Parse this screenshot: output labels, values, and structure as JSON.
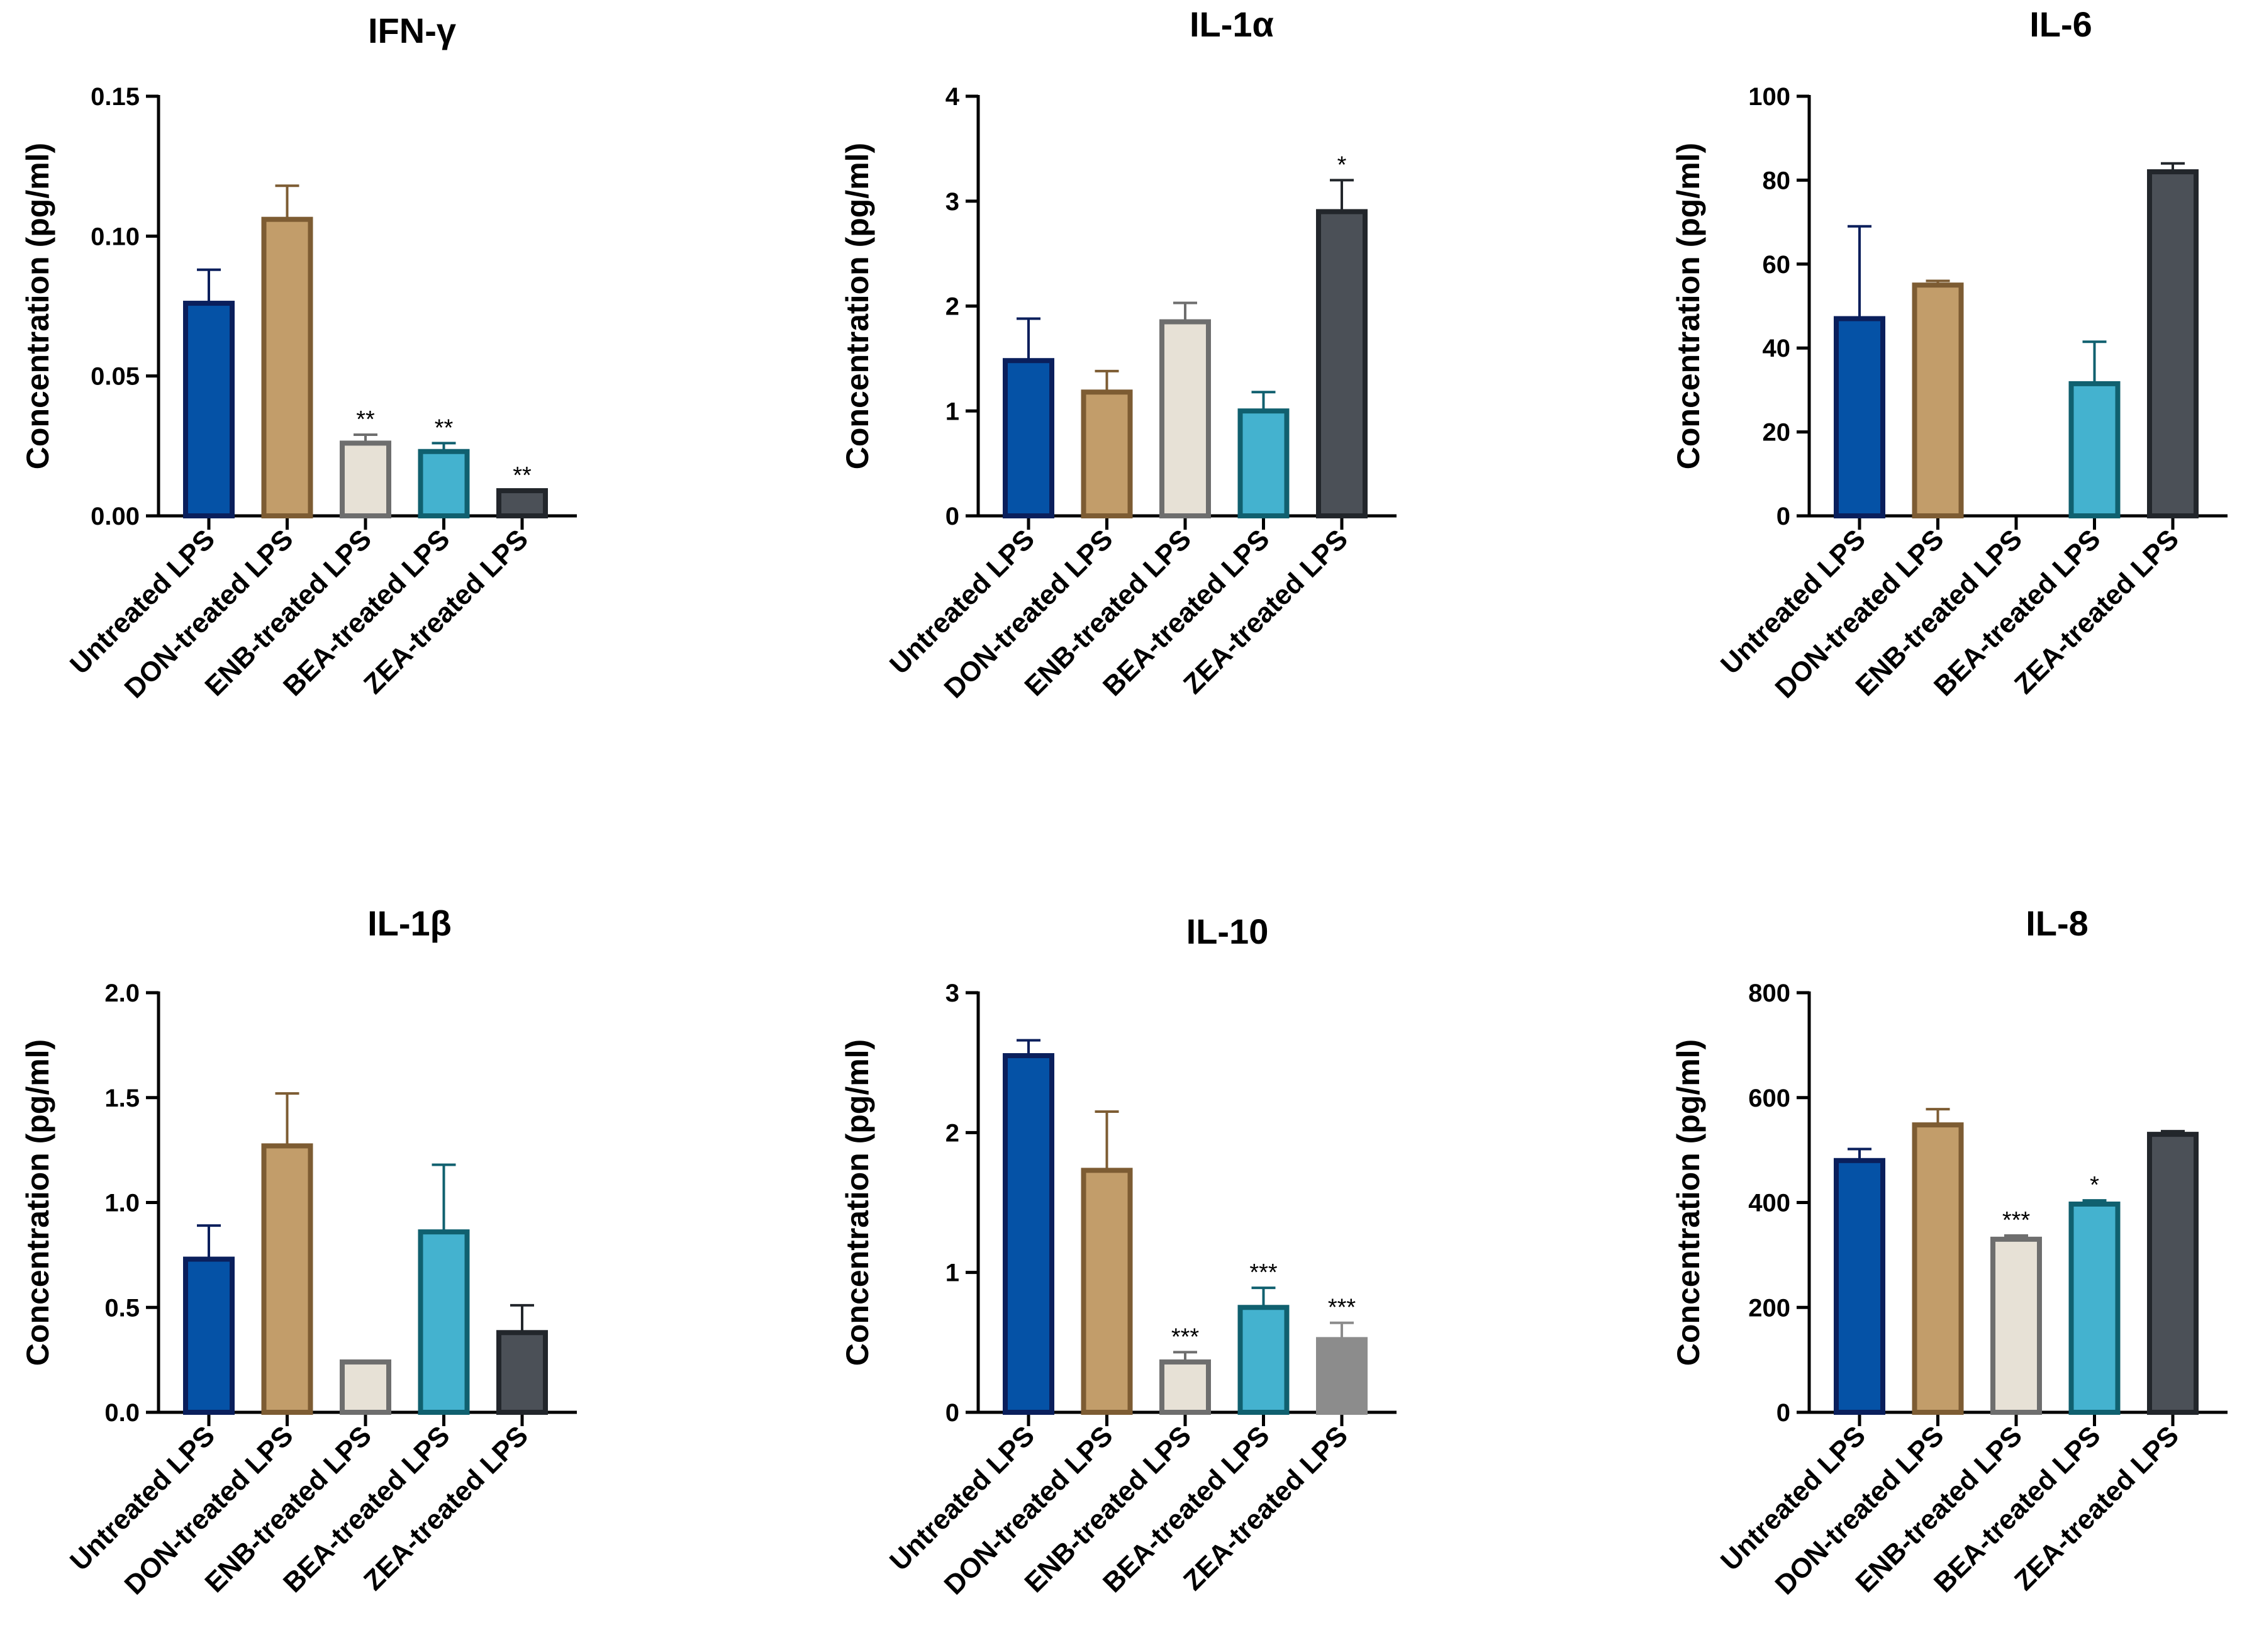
{
  "colors": {
    "untreated": {
      "fill": "#0552a6",
      "stroke": "#0a1f5c"
    },
    "don": {
      "fill": "#c29d6a",
      "stroke": "#7d5c33"
    },
    "enb": {
      "fill": "#e7e1d6",
      "stroke": "#6e6e6e"
    },
    "bea": {
      "fill": "#44b2cf",
      "stroke": "#10606f"
    },
    "zea": {
      "fill": "#4b5057",
      "stroke": "#22262b"
    },
    "zea_light": {
      "fill": "#8c8c8c",
      "stroke": "#8c8c8c"
    }
  },
  "chart_data": [
    {
      "type": "bar",
      "title": "IFN-γ",
      "ylabel": "Concentration (pg/ml)",
      "xlabel": "",
      "categories": [
        "Untreated LPS",
        "DON-treated LPS",
        "ENB-treated LPS",
        "BEA-treated LPS",
        "ZEA-treated LPS"
      ],
      "values": [
        0.076,
        0.106,
        0.026,
        0.023,
        0.009
      ],
      "errors": [
        0.012,
        0.012,
        0.003,
        0.003,
        0.0
      ],
      "significance": [
        "",
        "",
        "**",
        "**",
        "**"
      ],
      "ylim": [
        0,
        0.15
      ],
      "yticks": [
        "0.00",
        "0.05",
        "0.10",
        "0.15"
      ],
      "bar_colors": [
        "untreated",
        "don",
        "enb",
        "bea",
        "zea"
      ]
    },
    {
      "type": "bar",
      "title": "IL-1α",
      "ylabel": "Concentration (pg/ml)",
      "xlabel": "",
      "categories": [
        "Untreated LPS",
        "DON-treated LPS",
        "ENB-treated LPS",
        "BEA-treated LPS",
        "ZEA-treated LPS"
      ],
      "values": [
        1.48,
        1.18,
        1.85,
        1.0,
        2.9
      ],
      "errors": [
        0.4,
        0.2,
        0.18,
        0.18,
        0.3
      ],
      "significance": [
        "",
        "",
        "",
        "",
        "*"
      ],
      "ylim": [
        0,
        4
      ],
      "yticks": [
        "0",
        "1",
        "2",
        "3",
        "4"
      ],
      "bar_colors": [
        "untreated",
        "don",
        "enb",
        "bea",
        "zea"
      ]
    },
    {
      "type": "bar",
      "title": "IL-6",
      "ylabel": "Concentration (pg/ml)",
      "xlabel": "",
      "categories": [
        "Untreated LPS",
        "DON-treated LPS",
        "ENB-treated LPS",
        "BEA-treated LPS",
        "ZEA-treated LPS"
      ],
      "values": [
        47,
        55,
        0,
        31.5,
        82
      ],
      "errors": [
        22,
        1,
        0,
        10,
        2
      ],
      "significance": [
        "",
        "",
        "",
        "",
        ""
      ],
      "ylim": [
        0,
        100
      ],
      "yticks": [
        "0",
        "20",
        "40",
        "60",
        "80",
        "100"
      ],
      "bar_colors": [
        "untreated",
        "don",
        "enb",
        "bea",
        "zea"
      ]
    },
    {
      "type": "bar",
      "title": "IL-1β",
      "ylabel": "Concentration (pg/ml)",
      "xlabel": "",
      "categories": [
        "Untreated LPS",
        "DON-treated LPS",
        "ENB-treated LPS",
        "BEA-treated LPS",
        "ZEA-treated LPS"
      ],
      "values": [
        0.73,
        1.27,
        0.24,
        0.86,
        0.38
      ],
      "errors": [
        0.16,
        0.25,
        0.0,
        0.32,
        0.13
      ],
      "significance": [
        "",
        "",
        "",
        "",
        ""
      ],
      "ylim": [
        0,
        2.0
      ],
      "yticks": [
        "0.0",
        "0.5",
        "1.0",
        "1.5",
        "2.0"
      ],
      "bar_colors": [
        "untreated",
        "don",
        "enb",
        "bea",
        "zea"
      ]
    },
    {
      "type": "bar",
      "title": "IL-10",
      "ylabel": "Concentration (pg/ml)",
      "xlabel": "",
      "categories": [
        "Untreated LPS",
        "DON-treated LPS",
        "ENB-treated LPS",
        "BEA-treated LPS",
        "ZEA-treated LPS"
      ],
      "values": [
        2.55,
        1.73,
        0.36,
        0.75,
        0.52
      ],
      "errors": [
        0.11,
        0.42,
        0.07,
        0.14,
        0.12
      ],
      "significance": [
        "",
        "",
        "***",
        "***",
        "***"
      ],
      "ylim": [
        0,
        3
      ],
      "yticks": [
        "0",
        "1",
        "2",
        "3"
      ],
      "bar_colors": [
        "untreated",
        "don",
        "enb",
        "bea",
        "zea_light"
      ]
    },
    {
      "type": "bar",
      "title": "IL-8",
      "ylabel": "Concentration (pg/ml)",
      "xlabel": "",
      "categories": [
        "Untreated LPS",
        "DON-treated LPS",
        "ENB-treated LPS",
        "BEA-treated LPS",
        "ZEA-treated LPS"
      ],
      "values": [
        480,
        548,
        330,
        397,
        530
      ],
      "errors": [
        22,
        30,
        7,
        7,
        6
      ],
      "significance": [
        "",
        "",
        "***",
        "*",
        ""
      ],
      "ylim": [
        0,
        800
      ],
      "yticks": [
        "0",
        "200",
        "400",
        "600",
        "800"
      ],
      "bar_colors": [
        "untreated",
        "don",
        "enb",
        "bea",
        "zea"
      ]
    }
  ]
}
